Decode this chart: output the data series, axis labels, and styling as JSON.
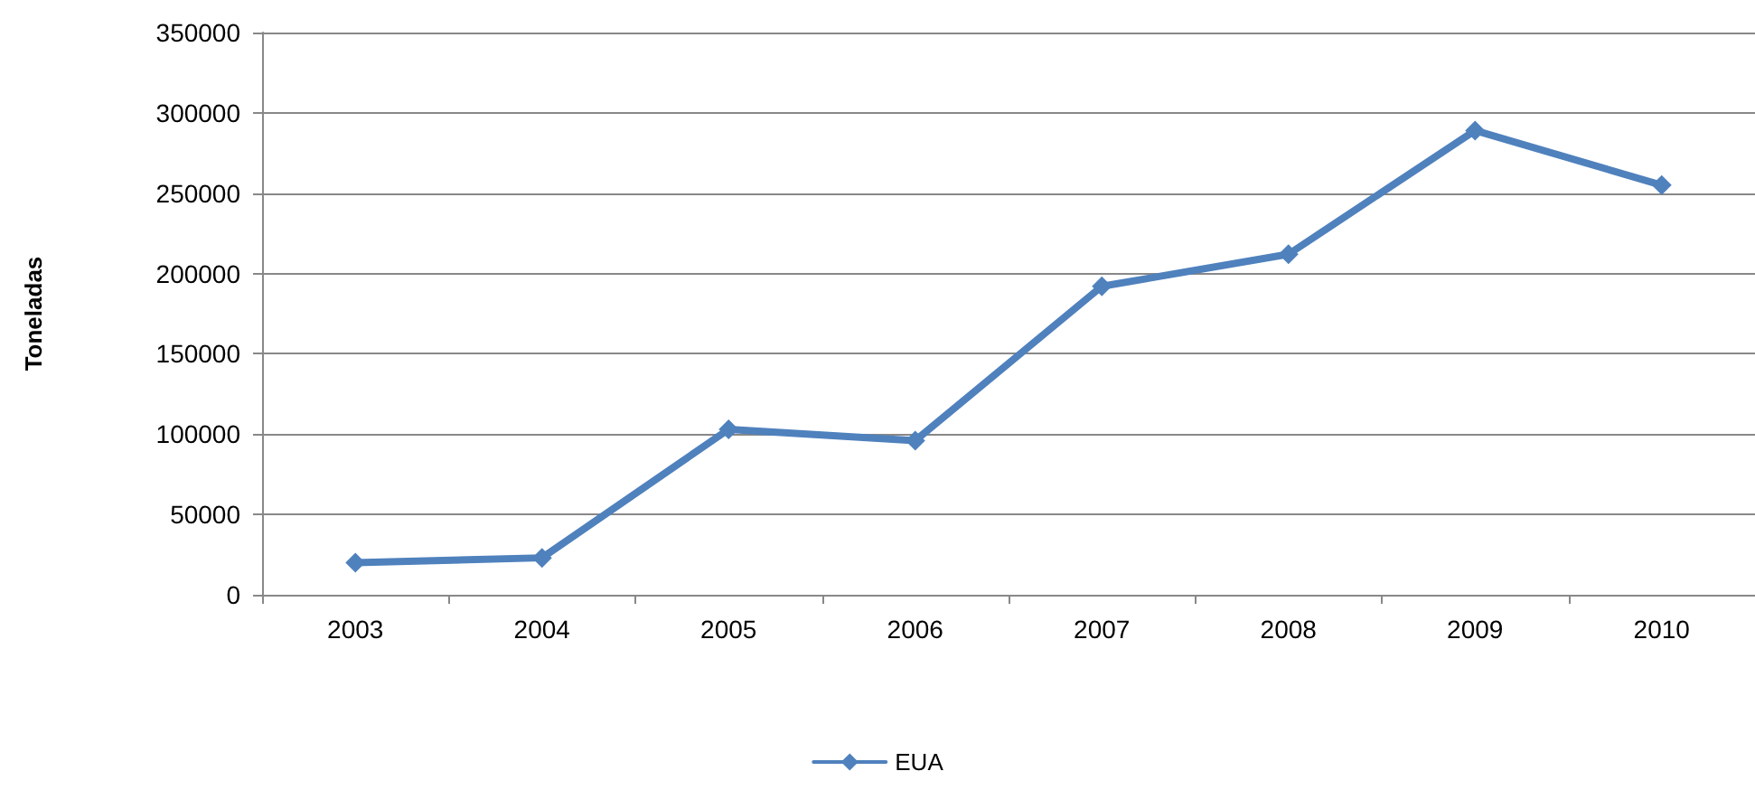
{
  "chart_data": {
    "type": "line",
    "ylabel": "Toneladas",
    "categories": [
      "2003",
      "2004",
      "2005",
      "2006",
      "2007",
      "2008",
      "2009",
      "2010"
    ],
    "series": [
      {
        "name": "EUA",
        "color": "#4f81bd",
        "values": [
          20000,
          23000,
          103000,
          96000,
          192000,
          212000,
          289000,
          255000
        ]
      }
    ],
    "ylim": [
      0,
      350000
    ],
    "yticks": [
      0,
      50000,
      100000,
      150000,
      200000,
      250000,
      300000,
      350000
    ],
    "grid": "y",
    "legend": "bottom",
    "marker": "diamond",
    "line_style": "solid"
  }
}
